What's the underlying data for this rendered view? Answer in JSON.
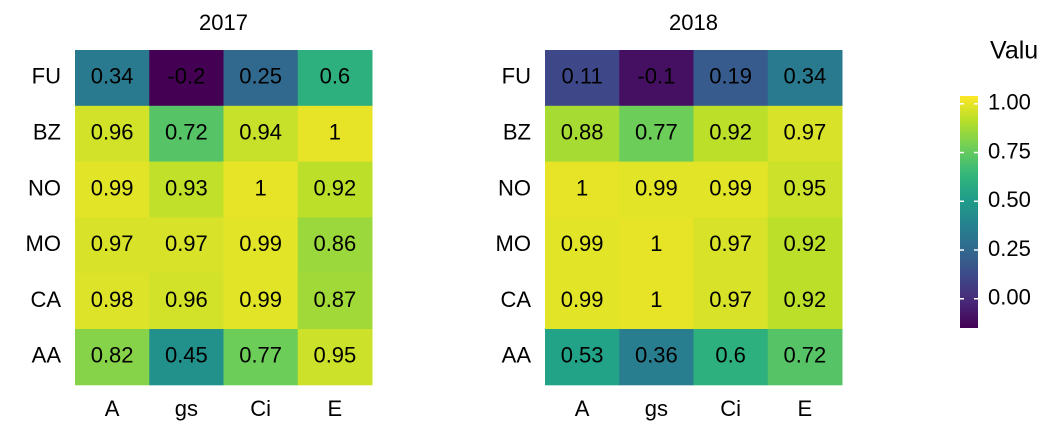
{
  "chart_data": [
    {
      "type": "heatmap",
      "title": "2017",
      "x": [
        "A",
        "gs",
        "Ci",
        "E"
      ],
      "y": [
        "FU",
        "BZ",
        "NO",
        "MO",
        "CA",
        "AA"
      ],
      "values": [
        [
          0.34,
          -0.2,
          0.25,
          0.6
        ],
        [
          0.96,
          0.72,
          0.94,
          1
        ],
        [
          0.99,
          0.93,
          1,
          0.92
        ],
        [
          0.97,
          0.97,
          0.99,
          0.86
        ],
        [
          0.98,
          0.96,
          0.99,
          0.87
        ],
        [
          0.82,
          0.45,
          0.77,
          0.95
        ]
      ]
    },
    {
      "type": "heatmap",
      "title": "2018",
      "x": [
        "A",
        "gs",
        "Ci",
        "E"
      ],
      "y": [
        "FU",
        "BZ",
        "NO",
        "MO",
        "CA",
        "AA"
      ],
      "values": [
        [
          0.11,
          -0.1,
          0.19,
          0.34
        ],
        [
          0.88,
          0.77,
          0.92,
          0.97
        ],
        [
          1,
          0.99,
          0.99,
          0.95
        ],
        [
          0.99,
          1,
          0.97,
          0.92
        ],
        [
          0.99,
          1,
          0.97,
          0.92
        ],
        [
          0.53,
          0.36,
          0.6,
          0.72
        ]
      ]
    }
  ],
  "colorbar": {
    "title": "Value",
    "colormap": "viridis",
    "lim": [
      -0.15,
      1.04
    ],
    "ticks": [
      {
        "value": 1,
        "label": "1.00"
      },
      {
        "value": 0.75,
        "label": "0.75"
      },
      {
        "value": 0.5,
        "label": "0.50"
      },
      {
        "value": 0.25,
        "label": "0.25"
      },
      {
        "value": 0,
        "label": "0.00"
      }
    ]
  }
}
